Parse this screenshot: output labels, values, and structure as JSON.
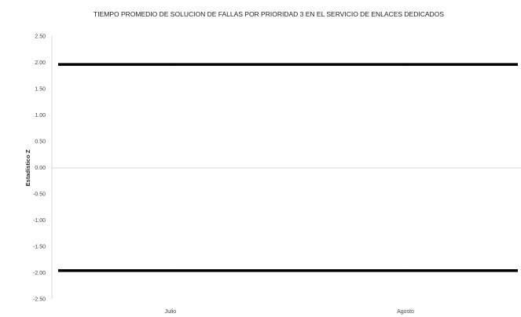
{
  "chart_data": {
    "type": "line",
    "title": "TIEMPO PROMEDIO DE SOLUCION DE FALLAS POR PRIORIDAD 3 EN EL SERVICIO DE ENLACES DEDICADOS",
    "xlabel": "",
    "ylabel": "Estadístico Z",
    "categories": [
      "Julio",
      "Agosto"
    ],
    "series": [
      {
        "values": [
          1.96,
          1.96
        ],
        "color": "#000000"
      },
      {
        "values": [
          -1.96,
          -1.96
        ],
        "color": "#000000"
      }
    ],
    "ylim": [
      -2.5,
      2.5
    ],
    "yticks": [
      "2.50",
      "2.00",
      "1.50",
      "1.00",
      "0.50",
      "0.00",
      "-0.50",
      "-1.00",
      "-1.50",
      "-2.00",
      "-2.50"
    ],
    "grid": false,
    "legend": "none"
  }
}
